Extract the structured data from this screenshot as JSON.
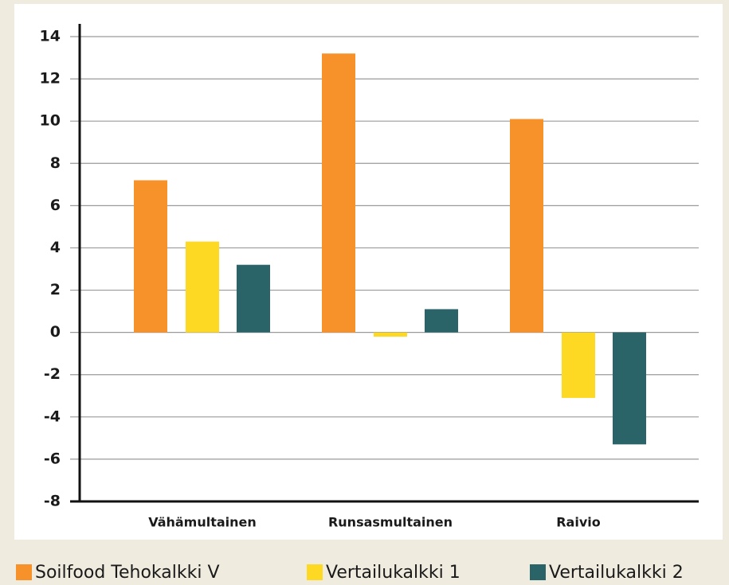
{
  "chart_data": {
    "type": "bar",
    "categories": [
      "Vähämultainen",
      "Runsasmultainen",
      "Raivio"
    ],
    "series": [
      {
        "name": "Soilfood Tehokalkki V",
        "color": "#f7922b",
        "values": [
          7.2,
          13.2,
          10.1
        ]
      },
      {
        "name": "Vertailukalkki 1",
        "color": "#fdd923",
        "values": [
          4.3,
          -0.2,
          -3.1
        ]
      },
      {
        "name": "Vertailukalkki 2",
        "color": "#2a6468",
        "values": [
          3.2,
          1.1,
          -5.3
        ]
      }
    ],
    "ylim": [
      -8,
      14
    ],
    "yticks": [
      -8,
      -6,
      -4,
      -2,
      0,
      2,
      4,
      6,
      8,
      10,
      12,
      14
    ],
    "grid": true,
    "legend": "bottom"
  }
}
